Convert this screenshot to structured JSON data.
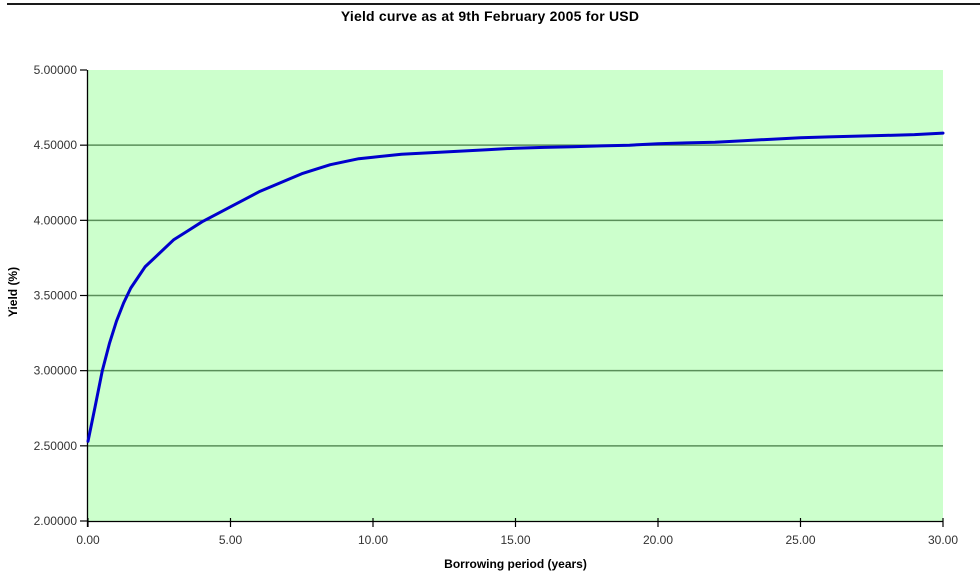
{
  "chart_data": {
    "type": "line",
    "title": "Yield curve as at 9th February 2005 for USD",
    "xlabel": "Borrowing period (years)",
    "ylabel": "Yield (%)",
    "xlim": [
      0,
      30
    ],
    "ylim": [
      2.0,
      5.0
    ],
    "x_ticks": [
      0,
      5,
      10,
      15,
      20,
      25,
      30
    ],
    "x_tick_labels": [
      "0.00",
      "5.00",
      "10.00",
      "15.00",
      "20.00",
      "25.00",
      "30.00"
    ],
    "y_ticks": [
      2.0,
      2.5,
      3.0,
      3.5,
      4.0,
      4.5,
      5.0
    ],
    "y_tick_labels": [
      "2.00000",
      "2.50000",
      "3.00000",
      "3.50000",
      "4.00000",
      "4.50000",
      "5.00000"
    ],
    "grid": "horizontal",
    "legend": "none",
    "plot_bg": "#ccffcc",
    "grid_color": "#5a8f5a",
    "axis_color": "#000000",
    "tick_label_color": "#333333",
    "series": [
      {
        "name": "USD yield curve",
        "color": "#0000cc",
        "x": [
          0,
          0.25,
          0.5,
          0.75,
          1,
          1.25,
          1.5,
          1.75,
          2,
          2.5,
          3,
          3.5,
          4,
          4.5,
          5,
          5.5,
          6,
          6.5,
          7,
          7.5,
          8,
          8.5,
          9,
          9.5,
          10,
          11,
          12,
          13,
          14,
          15,
          16,
          17,
          18,
          19,
          20,
          21,
          22,
          23,
          24,
          25,
          26,
          27,
          28,
          29,
          30
        ],
        "y": [
          2.53,
          2.76,
          3.0,
          3.18,
          3.33,
          3.45,
          3.55,
          3.62,
          3.69,
          3.78,
          3.87,
          3.93,
          3.99,
          4.04,
          4.09,
          4.14,
          4.19,
          4.23,
          4.27,
          4.31,
          4.34,
          4.37,
          4.39,
          4.41,
          4.42,
          4.44,
          4.45,
          4.46,
          4.47,
          4.48,
          4.485,
          4.49,
          4.495,
          4.5,
          4.51,
          4.515,
          4.52,
          4.53,
          4.54,
          4.55,
          4.555,
          4.56,
          4.565,
          4.57,
          4.58
        ]
      }
    ]
  }
}
